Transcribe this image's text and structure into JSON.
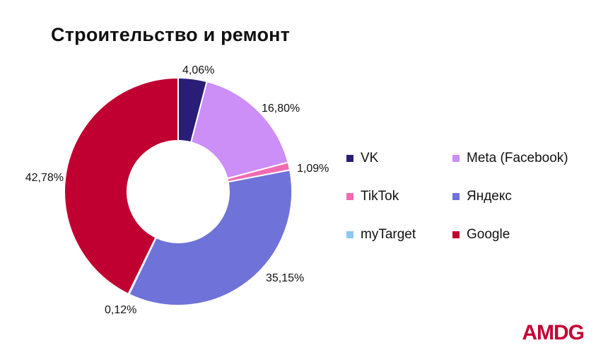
{
  "logo_text": "AMDG",
  "chart_data": {
    "type": "pie",
    "donut": true,
    "title": "Строительство и ремонт",
    "legend_position": "right",
    "series": [
      {
        "name": "VK",
        "value": 4.06,
        "label": "4,06%",
        "color": "#2a1d77"
      },
      {
        "name": "Meta (Facebook)",
        "value": 16.8,
        "label": "16,80%",
        "color": "#cc8ef7"
      },
      {
        "name": "TikTok",
        "value": 1.09,
        "label": "1,09%",
        "color": "#f06bb2"
      },
      {
        "name": "Яндекс",
        "value": 35.15,
        "label": "35,15%",
        "color": "#6f72d8"
      },
      {
        "name": "myTarget",
        "value": 0.12,
        "label": "0,12%",
        "color": "#8cc8f2"
      },
      {
        "name": "Google",
        "value": 42.78,
        "label": "42,78%",
        "color": "#c00031"
      }
    ]
  }
}
